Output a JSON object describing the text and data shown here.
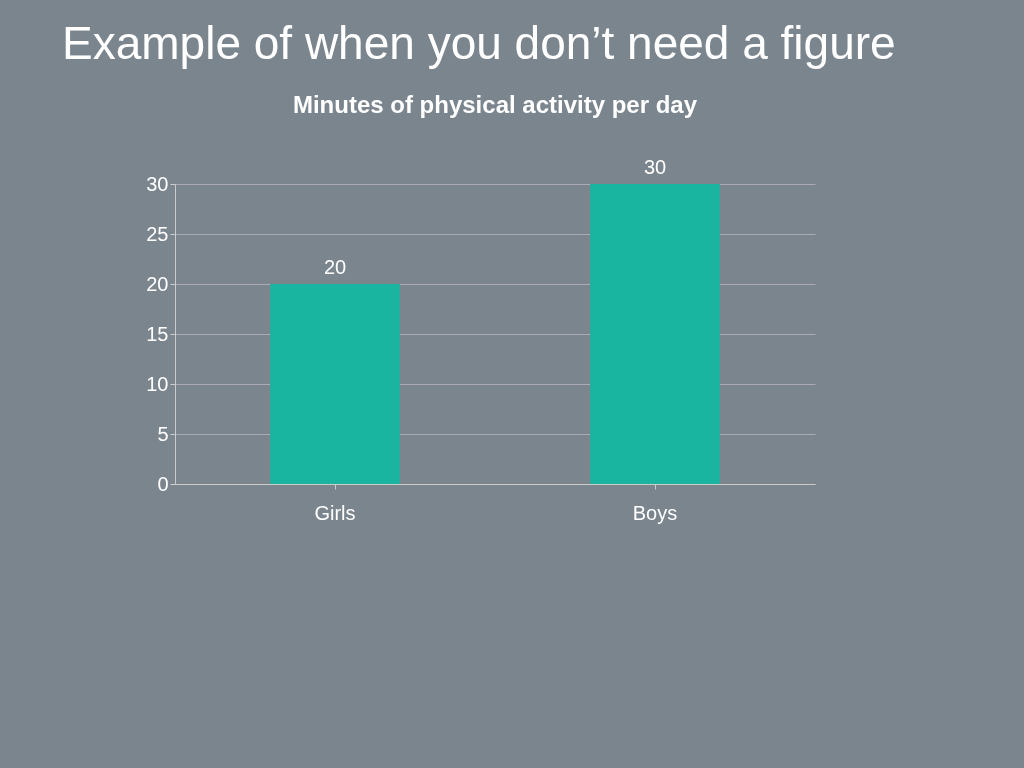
{
  "chart_data": {
    "type": "bar",
    "title": "Example of when you don’t need a figure",
    "subtitle": "Minutes of physical activity per day",
    "categories": [
      "Girls",
      "Boys"
    ],
    "values": [
      20,
      30
    ],
    "color": "#1ab5a0",
    "ylim": [
      0,
      30
    ],
    "yticks": [
      0,
      5,
      10,
      15,
      20,
      25,
      30
    ],
    "grid": "y",
    "data_labels": true
  }
}
